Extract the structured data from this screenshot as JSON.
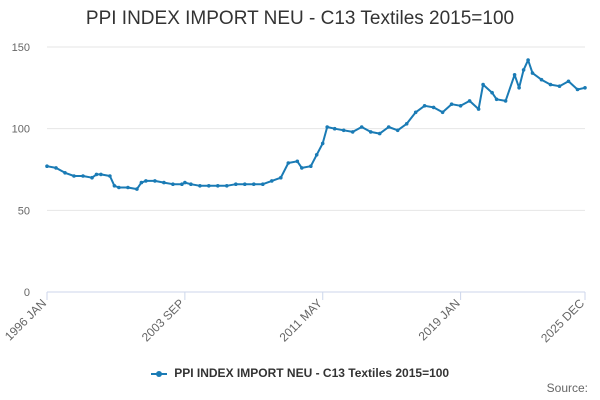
{
  "chart_data": {
    "type": "line",
    "title": "PPI INDEX IMPORT NEU - C13 Textiles 2015=100",
    "xlabel": "",
    "ylabel": "",
    "ylim": [
      0,
      150
    ],
    "yticks": [
      0,
      50,
      100,
      150
    ],
    "x_range": [
      "1996 JAN",
      "2025 DEC"
    ],
    "xticks": [
      "1996 JAN",
      "2003 SEP",
      "2011 MAY",
      "2019 JAN",
      "2025 DEC"
    ],
    "grid": true,
    "legend_position": "bottom-center",
    "source_label": "Source:",
    "series": [
      {
        "name": "PPI INDEX IMPORT NEU - C13 Textiles 2015=100",
        "color": "#1a7bb5",
        "points": [
          [
            "1996 JAN",
            77
          ],
          [
            "1996 JUL",
            76
          ],
          [
            "1997 JAN",
            73
          ],
          [
            "1997 JUL",
            71
          ],
          [
            "1998 JAN",
            71
          ],
          [
            "1998 JUL",
            70
          ],
          [
            "1998 OCT",
            72
          ],
          [
            "1999 JAN",
            72
          ],
          [
            "1999 JUL",
            71
          ],
          [
            "1999 OCT",
            65
          ],
          [
            "2000 JAN",
            64
          ],
          [
            "2000 JUL",
            64
          ],
          [
            "2001 JAN",
            63
          ],
          [
            "2001 APR",
            67
          ],
          [
            "2001 JUL",
            68
          ],
          [
            "2002 JAN",
            68
          ],
          [
            "2002 JUL",
            67
          ],
          [
            "2003 JAN",
            66
          ],
          [
            "2003 JUL",
            66
          ],
          [
            "2003 SEP",
            67
          ],
          [
            "2004 JAN",
            66
          ],
          [
            "2004 JUL",
            65
          ],
          [
            "2005 JAN",
            65
          ],
          [
            "2005 JUL",
            65
          ],
          [
            "2006 JAN",
            65
          ],
          [
            "2006 JUL",
            66
          ],
          [
            "2007 JAN",
            66
          ],
          [
            "2007 JUL",
            66
          ],
          [
            "2008 JAN",
            66
          ],
          [
            "2008 JUL",
            68
          ],
          [
            "2009 JAN",
            70
          ],
          [
            "2009 JUN",
            79
          ],
          [
            "2009 DEC",
            80
          ],
          [
            "2010 MAR",
            76
          ],
          [
            "2010 SEP",
            77
          ],
          [
            "2011 JAN",
            84
          ],
          [
            "2011 MAY",
            91
          ],
          [
            "2011 AUG",
            101
          ],
          [
            "2012 JAN",
            100
          ],
          [
            "2012 JUL",
            99
          ],
          [
            "2013 JAN",
            98
          ],
          [
            "2013 JUL",
            101
          ],
          [
            "2014 JAN",
            98
          ],
          [
            "2014 JUL",
            97
          ],
          [
            "2015 JAN",
            101
          ],
          [
            "2015 JUL",
            99
          ],
          [
            "2016 JAN",
            103
          ],
          [
            "2016 JUL",
            110
          ],
          [
            "2017 JAN",
            114
          ],
          [
            "2017 JUL",
            113
          ],
          [
            "2018 JAN",
            110
          ],
          [
            "2018 JUL",
            115
          ],
          [
            "2019 JAN",
            114
          ],
          [
            "2019 JUL",
            117
          ],
          [
            "2020 JAN",
            112
          ],
          [
            "2020 APR",
            127
          ],
          [
            "2020 OCT",
            122
          ],
          [
            "2021 JAN",
            118
          ],
          [
            "2021 JUL",
            117
          ],
          [
            "2022 JAN",
            133
          ],
          [
            "2022 APR",
            125
          ],
          [
            "2022 JUL",
            136
          ],
          [
            "2022 OCT",
            142
          ],
          [
            "2023 JAN",
            134
          ],
          [
            "2023 JUL",
            130
          ],
          [
            "2024 JAN",
            127
          ],
          [
            "2024 JUL",
            126
          ],
          [
            "2025 JAN",
            129
          ],
          [
            "2025 JUL",
            124
          ],
          [
            "2025 DEC",
            125
          ]
        ]
      }
    ]
  }
}
